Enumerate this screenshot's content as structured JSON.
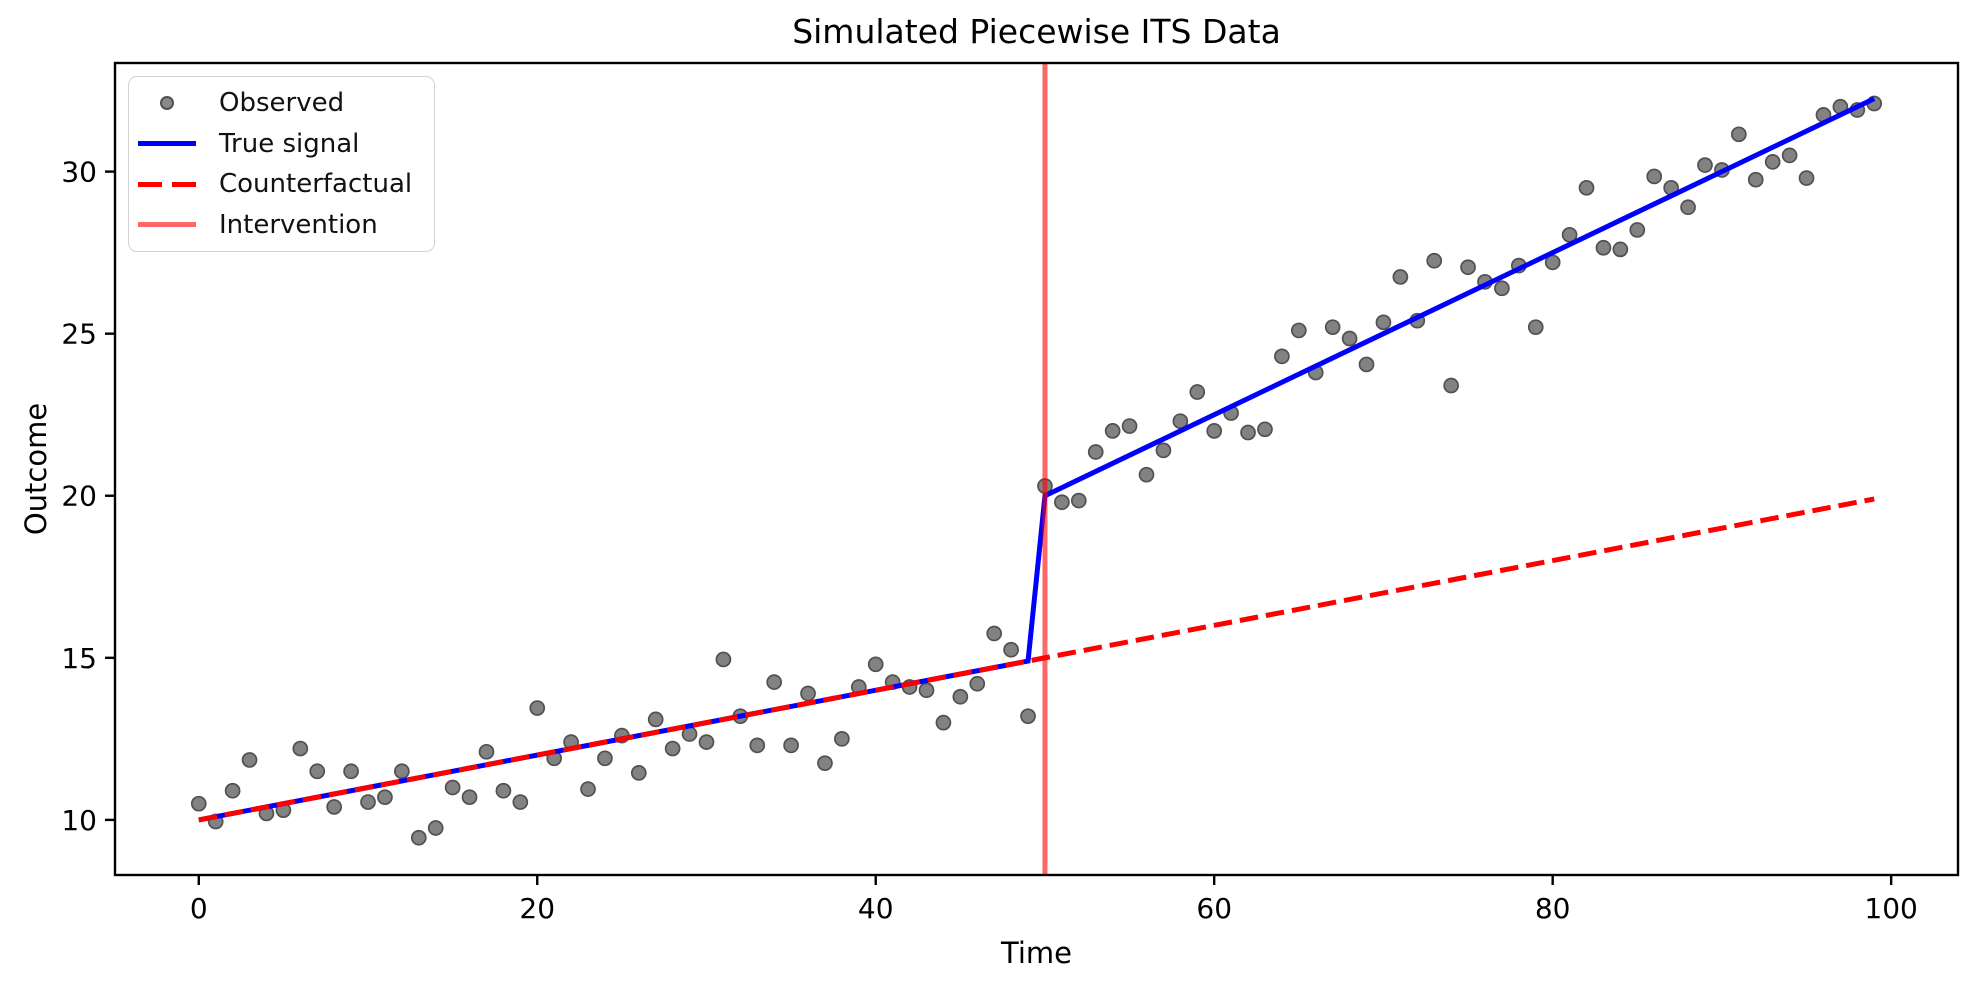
{
  "figure": {
    "kind": "matplotlib-style static plot"
  },
  "legend": {
    "position": "upper-left",
    "items": [
      {
        "label": "Observed",
        "swatch": "gray-dot-marker"
      },
      {
        "label": "True signal",
        "swatch": "blue-solid-line"
      },
      {
        "label": "Counterfactual",
        "swatch": "red-dashed-line"
      },
      {
        "label": "Intervention",
        "swatch": "light-red-solid-line"
      }
    ]
  },
  "colors": {
    "observed_fill": "#636363",
    "observed_edge": "#262626",
    "true_signal": "#0000ff",
    "counterfactual": "#ff0000",
    "intervention": "rgba(255,0,0,0.6)",
    "spine": "#000000"
  },
  "chart_data": {
    "type": "scatter",
    "title": "Simulated Piecewise ITS Data",
    "xlabel": "Time",
    "ylabel": "Outcome",
    "xlim": [
      -4.95,
      103.95
    ],
    "ylim": [
      8.3,
      33.35
    ],
    "x_ticks": [
      0,
      20,
      40,
      60,
      80,
      100
    ],
    "y_ticks": [
      10,
      15,
      20,
      25,
      30
    ],
    "grid": false,
    "legend_position": "upper left",
    "intervention_time": 50,
    "series": [
      {
        "name": "Observed",
        "type": "scatter",
        "points": [
          [
            0,
            10.5
          ],
          [
            1,
            9.95
          ],
          [
            2,
            10.9
          ],
          [
            3,
            11.85
          ],
          [
            4,
            10.2
          ],
          [
            5,
            10.3
          ],
          [
            6,
            12.2
          ],
          [
            7,
            11.5
          ],
          [
            8,
            10.4
          ],
          [
            9,
            11.5
          ],
          [
            10,
            10.55
          ],
          [
            11,
            10.7
          ],
          [
            12,
            11.5
          ],
          [
            13,
            9.45
          ],
          [
            14,
            9.75
          ],
          [
            15,
            11.0
          ],
          [
            16,
            10.7
          ],
          [
            17,
            12.1
          ],
          [
            18,
            10.9
          ],
          [
            19,
            10.55
          ],
          [
            20,
            13.45
          ],
          [
            21,
            11.9
          ],
          [
            22,
            12.4
          ],
          [
            23,
            10.95
          ],
          [
            24,
            11.9
          ],
          [
            25,
            12.6
          ],
          [
            26,
            11.45
          ],
          [
            27,
            13.1
          ],
          [
            28,
            12.2
          ],
          [
            29,
            12.65
          ],
          [
            30,
            12.4
          ],
          [
            31,
            14.95
          ],
          [
            32,
            13.2
          ],
          [
            33,
            12.3
          ],
          [
            34,
            14.25
          ],
          [
            35,
            12.3
          ],
          [
            36,
            13.9
          ],
          [
            37,
            11.75
          ],
          [
            38,
            12.5
          ],
          [
            39,
            14.1
          ],
          [
            40,
            14.8
          ],
          [
            41,
            14.25
          ],
          [
            42,
            14.1
          ],
          [
            43,
            14.0
          ],
          [
            44,
            13.0
          ],
          [
            45,
            13.8
          ],
          [
            46,
            14.2
          ],
          [
            47,
            15.75
          ],
          [
            48,
            15.25
          ],
          [
            49,
            13.2
          ],
          [
            50,
            20.3
          ],
          [
            51,
            19.8
          ],
          [
            52,
            19.85
          ],
          [
            53,
            21.35
          ],
          [
            54,
            22.0
          ],
          [
            55,
            22.15
          ],
          [
            56,
            20.65
          ],
          [
            57,
            21.4
          ],
          [
            58,
            22.3
          ],
          [
            59,
            23.2
          ],
          [
            60,
            22.0
          ],
          [
            61,
            22.55
          ],
          [
            62,
            21.95
          ],
          [
            63,
            22.05
          ],
          [
            64,
            24.3
          ],
          [
            65,
            25.1
          ],
          [
            66,
            23.8
          ],
          [
            67,
            25.2
          ],
          [
            68,
            24.85
          ],
          [
            69,
            24.05
          ],
          [
            70,
            25.35
          ],
          [
            71,
            26.75
          ],
          [
            72,
            25.4
          ],
          [
            73,
            27.25
          ],
          [
            74,
            23.4
          ],
          [
            75,
            27.05
          ],
          [
            76,
            26.6
          ],
          [
            77,
            26.4
          ],
          [
            78,
            27.1
          ],
          [
            79,
            25.2
          ],
          [
            80,
            27.2
          ],
          [
            81,
            28.05
          ],
          [
            82,
            29.5
          ],
          [
            83,
            27.65
          ],
          [
            84,
            27.6
          ],
          [
            85,
            28.2
          ],
          [
            86,
            29.85
          ],
          [
            87,
            29.5
          ],
          [
            88,
            28.9
          ],
          [
            89,
            30.2
          ],
          [
            90,
            30.05
          ],
          [
            91,
            31.15
          ],
          [
            92,
            29.75
          ],
          [
            93,
            30.3
          ],
          [
            94,
            30.5
          ],
          [
            95,
            29.8
          ],
          [
            96,
            31.75
          ],
          [
            97,
            32.0
          ],
          [
            98,
            31.9
          ],
          [
            99,
            32.1
          ]
        ]
      },
      {
        "name": "True signal",
        "type": "line",
        "points": [
          [
            0,
            10.0
          ],
          [
            49,
            14.9
          ],
          [
            50,
            20.0
          ],
          [
            99,
            32.25
          ]
        ]
      },
      {
        "name": "Counterfactual",
        "type": "line",
        "dashed": true,
        "points": [
          [
            0,
            10.0
          ],
          [
            99,
            19.9
          ]
        ]
      },
      {
        "name": "Intervention",
        "type": "vline",
        "x": 50
      }
    ]
  }
}
